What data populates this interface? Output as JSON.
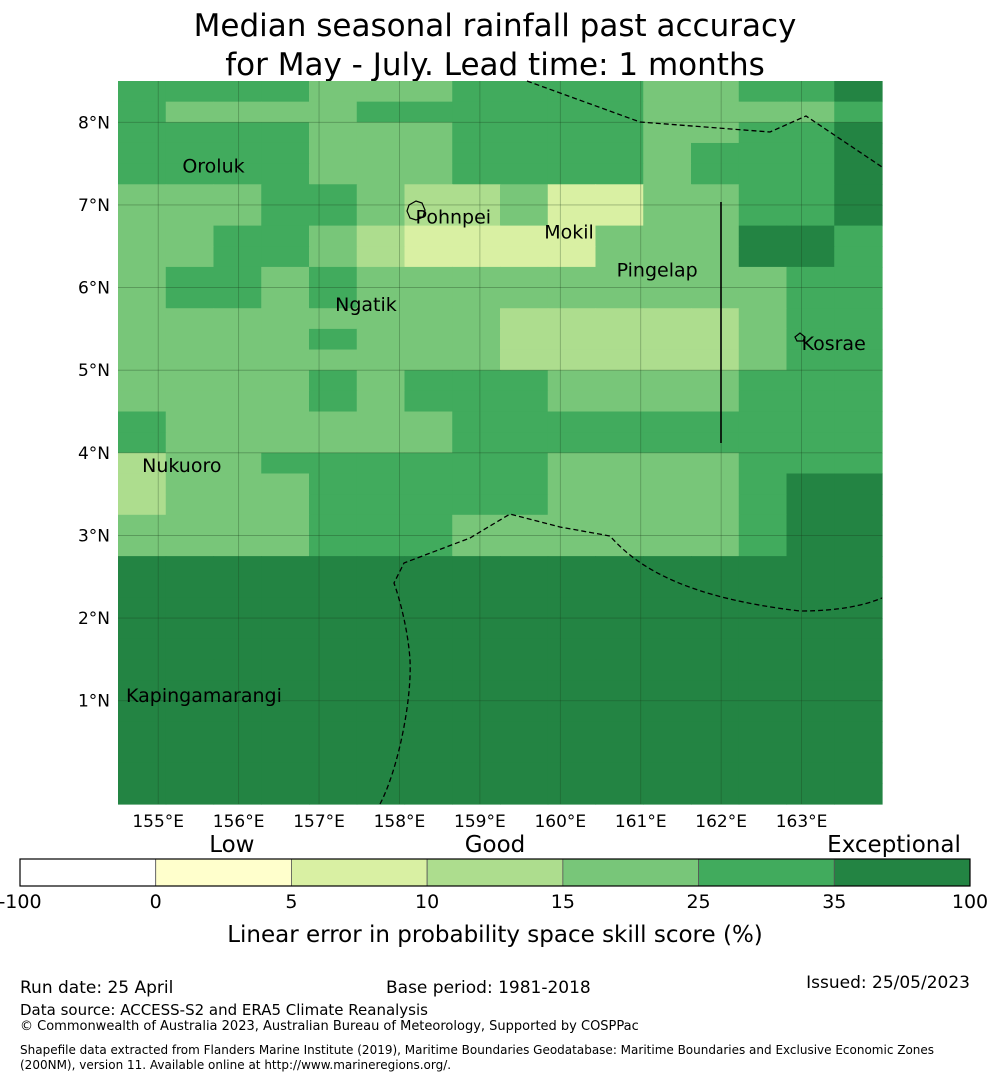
{
  "title_line1": "Median seasonal rainfall past accuracy",
  "title_line2": "for May - July. Lead time: 1 months",
  "map": {
    "lon_range": [
      154.5,
      164.0
    ],
    "lat_range": [
      -0.25,
      8.5
    ],
    "lon_ticks": [
      {
        "value": 155,
        "label": "155°E"
      },
      {
        "value": 156,
        "label": "156°E"
      },
      {
        "value": 157,
        "label": "157°E"
      },
      {
        "value": 158,
        "label": "158°E"
      },
      {
        "value": 159,
        "label": "159°E"
      },
      {
        "value": 160,
        "label": "160°E"
      },
      {
        "value": 161,
        "label": "161°E"
      },
      {
        "value": 162,
        "label": "162°E"
      },
      {
        "value": 163,
        "label": "163°E"
      }
    ],
    "lat_ticks": [
      {
        "value": 1,
        "label": "1°N"
      },
      {
        "value": 2,
        "label": "2°N"
      },
      {
        "value": 3,
        "label": "3°N"
      },
      {
        "value": 4,
        "label": "4°N"
      },
      {
        "value": 5,
        "label": "5°N"
      },
      {
        "value": 6,
        "label": "6°N"
      },
      {
        "value": 7,
        "label": "7°N"
      },
      {
        "value": 8,
        "label": "8°N"
      }
    ],
    "grid": true,
    "cell_colors": {
      "c1": "#ffffcc",
      "c2": "#d9f0a3",
      "c3": "#addd8e",
      "c4": "#78c679",
      "c5": "#41ab5d",
      "c6": "#238443"
    },
    "rows": [
      "5555444555544556",
      "5444455555544445",
      "5555444555544556",
      "5555444555545556",
      "5555444555545556",
      "4445543342244556",
      "4445543342244556",
      "4455432222444665",
      "4455432222444665",
      "4554544444444455",
      "4554544444444455",
      "4444444433333455",
      "4444544433333455",
      "4444444433333455",
      "4444545554444555",
      "4444545554444555",
      "5444444555555555",
      "5444444555555555",
      "3445555554444555",
      "3444555554444566",
      "3444555554444566",
      "4444555444444566",
      "4444555444444566",
      "6666666666666666",
      "6666666666666666",
      "6666666666666666",
      "6666666666666666",
      "6666666666666666",
      "6666666666666666",
      "6666666666666666",
      "6666666666666666",
      "6666666666666666",
      "6666666666666666",
      "6666666666666666",
      "6666666666666666"
    ],
    "islands": [
      {
        "name": "Oroluk",
        "lon": 155.3,
        "lat": 7.48
      },
      {
        "name": "Pohnpei",
        "lon": 158.2,
        "lat": 6.86
      },
      {
        "name": "Mokil",
        "lon": 159.8,
        "lat": 6.68
      },
      {
        "name": "Pingelap",
        "lon": 160.7,
        "lat": 6.22
      },
      {
        "name": "Ngatik",
        "lon": 157.2,
        "lat": 5.8
      },
      {
        "name": "Kosrae",
        "lon": 163.0,
        "lat": 5.33
      },
      {
        "name": "Nukuoro",
        "lon": 154.8,
        "lat": 3.85
      },
      {
        "name": "Kapingamarangi",
        "lon": 154.6,
        "lat": 1.07
      }
    ]
  },
  "colorbar": {
    "categories": [
      {
        "label": "Low",
        "position": 0.223
      },
      {
        "label": "Good",
        "position": 0.5
      },
      {
        "label": "Exceptional",
        "position": 0.92
      }
    ],
    "segments": [
      "#ffffff",
      "#ffffcc",
      "#d9f0a3",
      "#addd8e",
      "#78c679",
      "#41ab5d",
      "#238443"
    ],
    "tick_labels": [
      "-100",
      "0",
      "5",
      "10",
      "15",
      "25",
      "35",
      "100"
    ],
    "label": "Linear error in probability space skill score (%)"
  },
  "footer": {
    "run_date": "Run date: 25 April",
    "base_period": "Base period: 1981-2018",
    "issued": "Issued: 25/05/2023",
    "data_source": "Data source: ACCESS-S2 and ERA5 Climate Reanalysis",
    "copyright": "© Commonwealth of Australia 2023, Australian Bureau of Meteorology, Supported by COSPPac",
    "shapefile_line1": "Shapefile data extracted from Flanders Marine Institute (2019), Maritime Boundaries Geodatabase: Maritime Boundaries and Exclusive Economic Zones",
    "shapefile_line2": "(200NM), version 11. Available online at http://www.marineregions.org/."
  }
}
